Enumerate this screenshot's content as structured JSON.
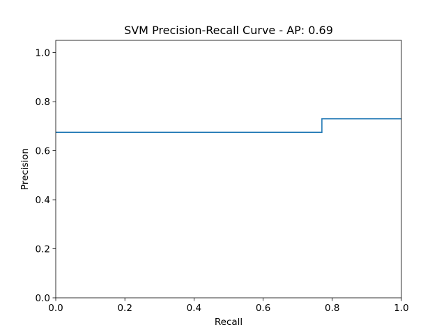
{
  "chart_data": {
    "type": "line",
    "title": "SVM Precision-Recall Curve - AP: 0.69",
    "xlabel": "Recall",
    "ylabel": "Precision",
    "xlim": [
      0.0,
      1.0
    ],
    "ylim": [
      0.0,
      1.05
    ],
    "xticks": [
      0.0,
      0.2,
      0.4,
      0.6,
      0.8,
      1.0
    ],
    "xtick_labels": [
      "0.0",
      "0.2",
      "0.4",
      "0.6",
      "0.8",
      "1.0"
    ],
    "yticks": [
      0.0,
      0.2,
      0.4,
      0.6,
      0.8,
      1.0
    ],
    "ytick_labels": [
      "0.0",
      "0.2",
      "0.4",
      "0.6",
      "0.8",
      "1.0"
    ],
    "grid": false,
    "legend": "none",
    "series": [
      {
        "step": "post",
        "color": "#1f77b4",
        "x": [
          0.0,
          0.77,
          0.77,
          1.0
        ],
        "y": [
          0.675,
          0.675,
          0.73,
          0.73
        ]
      }
    ]
  }
}
